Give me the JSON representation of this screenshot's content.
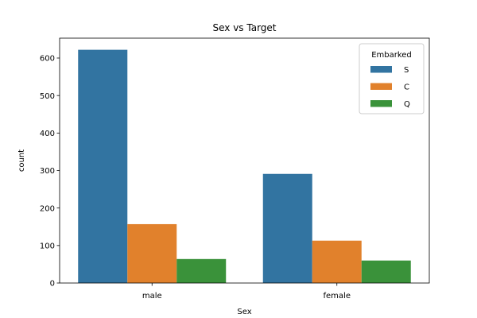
{
  "chart_data": {
    "type": "bar",
    "title": "Sex vs Target",
    "xlabel": "Sex",
    "ylabel": "count",
    "categories": [
      "male",
      "female"
    ],
    "series": [
      {
        "name": "S",
        "color": "#3274a1",
        "values": [
          622,
          291
        ]
      },
      {
        "name": "C",
        "color": "#e1812c",
        "values": [
          157,
          113
        ]
      },
      {
        "name": "Q",
        "color": "#3a923a",
        "values": [
          64,
          60
        ]
      }
    ],
    "ylim": [
      0,
      653
    ],
    "yticks": [
      0,
      100,
      200,
      300,
      400,
      500,
      600
    ],
    "legend": {
      "title": "Embarked",
      "position": "top-right"
    }
  }
}
